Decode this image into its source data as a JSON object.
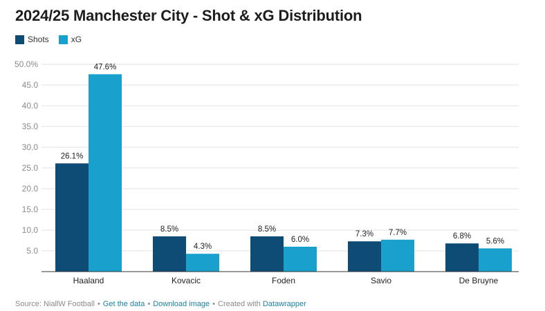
{
  "title": "2024/25 Manchester City - Shot & xG Distribution",
  "legend": [
    {
      "label": "Shots",
      "color": "#0f4c75"
    },
    {
      "label": "xG",
      "color": "#1aa0cc"
    }
  ],
  "chart_data": {
    "type": "bar",
    "title": "2024/25 Manchester City - Shot & xG Distribution",
    "xlabel": "",
    "ylabel": "",
    "ylim": [
      0,
      50
    ],
    "yticks": [
      5,
      10,
      15,
      20,
      25,
      30,
      35,
      40,
      45,
      50
    ],
    "ytick_labels": [
      "5.0",
      "10.0",
      "15.0",
      "20.0",
      "25.0",
      "30.0",
      "35.0",
      "40.0",
      "45.0",
      "50.0%"
    ],
    "categories": [
      "Haaland",
      "Kovacic",
      "Foden",
      "Savio",
      "De Bruyne"
    ],
    "series": [
      {
        "name": "Shots",
        "color": "#0f4c75",
        "values": [
          26.1,
          8.5,
          8.5,
          7.3,
          6.8
        ],
        "labels": [
          "26.1%",
          "8.5%",
          "8.5%",
          "7.3%",
          "6.8%"
        ]
      },
      {
        "name": "xG",
        "color": "#1aa0cc",
        "values": [
          47.6,
          4.3,
          6.0,
          7.7,
          5.6
        ],
        "labels": [
          "47.6%",
          "4.3%",
          "6.0%",
          "7.7%",
          "5.6%"
        ]
      }
    ],
    "grid": true,
    "legend_position": "top-left"
  },
  "footer": {
    "source": "Source: NiallW Football",
    "get_data": "Get the data",
    "download": "Download image",
    "created": "Created with",
    "datawrapper": "Datawrapper"
  }
}
